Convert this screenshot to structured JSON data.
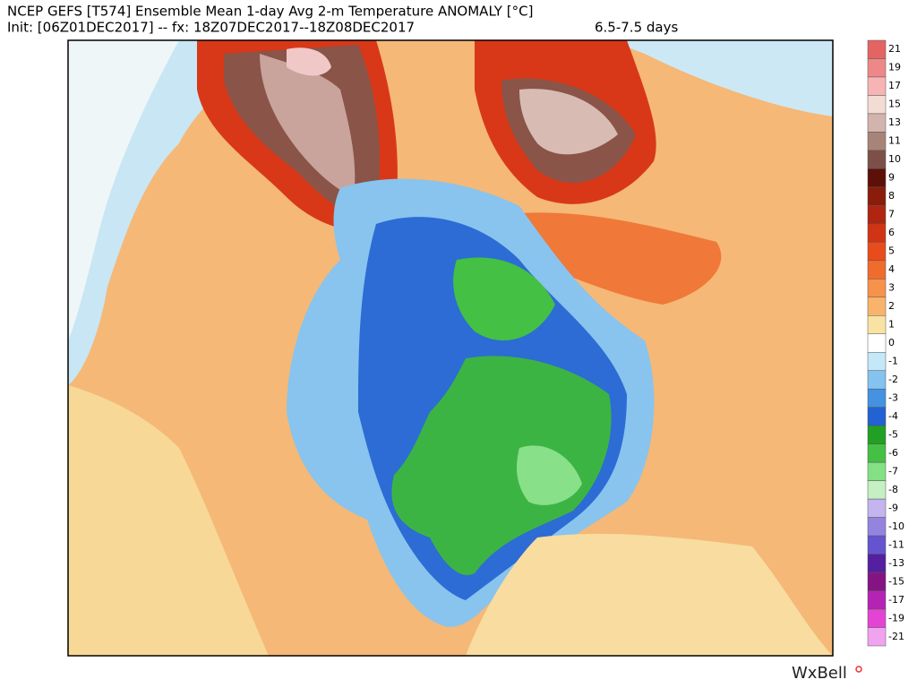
{
  "header": {
    "title": "NCEP GEFS [T574] Ensemble Mean 1-day Avg 2-m Temperature ANOMALY [°C]",
    "init": "Init: [06Z01DEC2017] -- fx: 18Z07DEC2017--18Z08DEC2017",
    "range": "6.5-7.5 days"
  },
  "colorbar": {
    "levels": [
      {
        "value": 21,
        "color": "#e46464"
      },
      {
        "value": 19,
        "color": "#ee8888"
      },
      {
        "value": 17,
        "color": "#f6b4b4"
      },
      {
        "value": 15,
        "color": "#f2dcd4"
      },
      {
        "value": 13,
        "color": "#d2b4ac"
      },
      {
        "value": 11,
        "color": "#a88478"
      },
      {
        "value": 10,
        "color": "#7c5048"
      },
      {
        "value": 9,
        "color": "#5c1008"
      },
      {
        "value": 8,
        "color": "#8a1c0c"
      },
      {
        "value": 7,
        "color": "#b02410"
      },
      {
        "value": 6,
        "color": "#d03414"
      },
      {
        "value": 5,
        "color": "#e84c1c"
      },
      {
        "value": 4,
        "color": "#f06c2c"
      },
      {
        "value": 3,
        "color": "#f6924c"
      },
      {
        "value": 2,
        "color": "#f8b46c"
      },
      {
        "value": 1,
        "color": "#f8e2a4"
      },
      {
        "value": 0,
        "color": "#ffffff"
      },
      {
        "value": -1,
        "color": "#c4e8f8"
      },
      {
        "value": -2,
        "color": "#84c2f0"
      },
      {
        "value": -3,
        "color": "#4492e0"
      },
      {
        "value": -4,
        "color": "#2262d2"
      },
      {
        "value": -5,
        "color": "#22a024"
      },
      {
        "value": -6,
        "color": "#44c044"
      },
      {
        "value": -7,
        "color": "#84e084"
      },
      {
        "value": -8,
        "color": "#c4f0c4"
      },
      {
        "value": -9,
        "color": "#c4b4f0"
      },
      {
        "value": -10,
        "color": "#9484e0"
      },
      {
        "value": -11,
        "color": "#6454d0"
      },
      {
        "value": -13,
        "color": "#5420a0"
      },
      {
        "value": -15,
        "color": "#841484"
      },
      {
        "value": -17,
        "color": "#b424b4"
      },
      {
        "value": -19,
        "color": "#e444d4"
      },
      {
        "value": -21,
        "color": "#f0a4f0"
      }
    ]
  },
  "logo": "WxBell"
}
